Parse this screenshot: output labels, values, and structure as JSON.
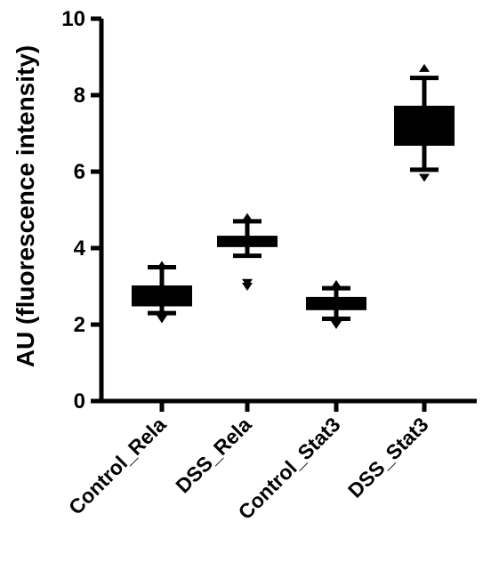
{
  "chart_data": {
    "type": "box",
    "ylabel": "AU (fluorescence intensity)",
    "xlabel": "",
    "title": "",
    "ylim": [
      0,
      10
    ],
    "yticks": [
      0,
      2,
      4,
      6,
      8,
      10
    ],
    "categories": [
      "Control_Rela",
      "DSS_Rela",
      "Control_Stat3",
      "DSS_Stat3"
    ],
    "boxes": [
      {
        "category": "Control_Rela",
        "whisker_low": 2.3,
        "q1": 2.5,
        "median": 2.75,
        "q3": 3.0,
        "whisker_high": 3.5,
        "outliers": [
          2.15,
          3.55
        ]
      },
      {
        "category": "DSS_Rela",
        "whisker_low": 3.8,
        "q1": 4.05,
        "median": 4.15,
        "q3": 4.3,
        "whisker_high": 4.7,
        "outliers": [
          3.0,
          3.1,
          4.8
        ]
      },
      {
        "category": "Control_Stat3",
        "whisker_low": 2.15,
        "q1": 2.4,
        "median": 2.55,
        "q3": 2.7,
        "whisker_high": 2.95,
        "outliers": [
          2.0,
          3.05
        ]
      },
      {
        "category": "DSS_Stat3",
        "whisker_low": 6.05,
        "q1": 6.7,
        "median": 7.2,
        "q3": 7.7,
        "whisker_high": 8.45,
        "outliers": [
          5.85,
          8.7
        ]
      }
    ],
    "grid": false,
    "legend": "none"
  }
}
